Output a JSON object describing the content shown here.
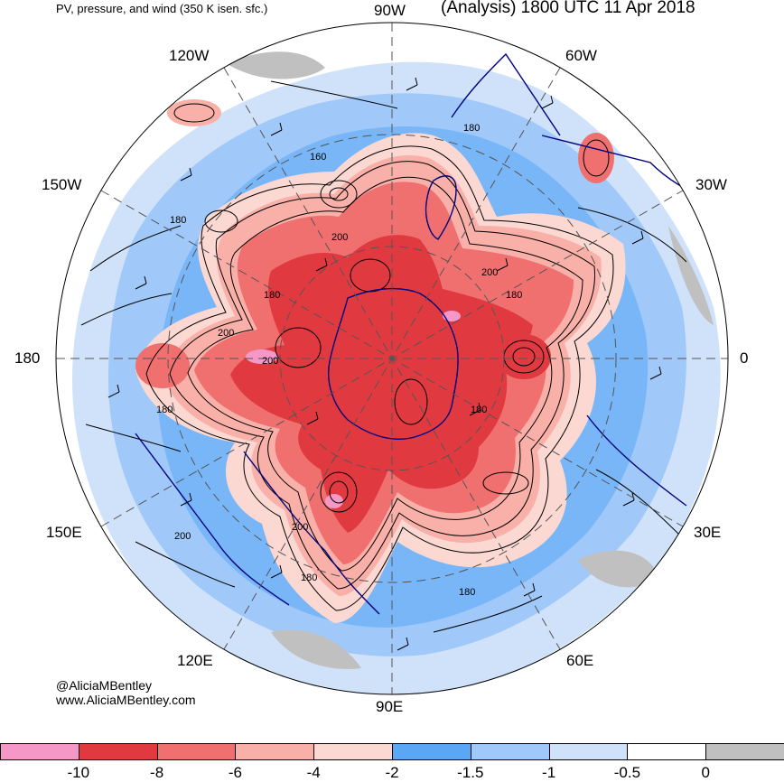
{
  "header": {
    "left_title": "PV, pressure, and wind (350 K isen. sfc.)",
    "right_title": "(Analysis) 1800 UTC 11 Apr 2018"
  },
  "longitude_labels": {
    "top": "90W",
    "top_left": "120W",
    "top_right": "60W",
    "upper_left": "150W",
    "upper_right": "30W",
    "left": "180",
    "right": "0",
    "lower_left": "150E",
    "lower_right": "30E",
    "bottom_left": "120E",
    "bottom_right": "60E",
    "bottom": "90E"
  },
  "contour_labels": {
    "c1": "180",
    "c2": "160",
    "c3": "180",
    "c4": "200",
    "c5": "180",
    "c6": "200",
    "c7": "180",
    "c8": "200",
    "c9": "200",
    "c10": "180",
    "c11": "180",
    "c12": "200",
    "c13": "200",
    "c14": "180",
    "c15": "180"
  },
  "credits": {
    "handle": "@AliciaMBentley",
    "website": "www.AliciaMBentley.com"
  },
  "colorbar": {
    "colors": [
      "#f598c8",
      "#e03a40",
      "#f07070",
      "#f8b0a8",
      "#fbd8d2",
      "#5aa8f5",
      "#a0c8f8",
      "#cfe2fa",
      "#ffffff",
      "#c0c0c0"
    ],
    "labels": [
      "-10",
      "-8",
      "-6",
      "-4",
      "-2",
      "-1.5",
      "-1",
      "-0.5",
      "0"
    ]
  },
  "map_colors": {
    "strong_negative": "#e03a40",
    "moderate_negative": "#f07070",
    "weak_negative": "#f8b0a8",
    "faint_negative": "#fbd8d2",
    "blue_dark": "#5aa8f5",
    "blue_mid": "#a0c8f8",
    "blue_light": "#cfe2fa",
    "gray": "#c0c0c0",
    "coastline": "#000080"
  }
}
